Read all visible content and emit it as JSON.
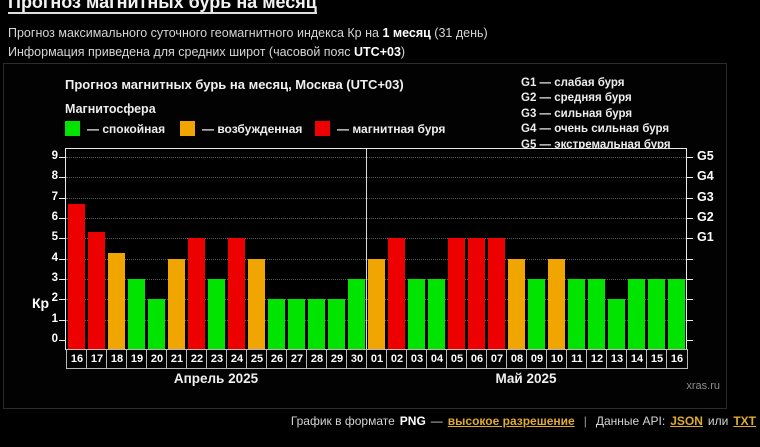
{
  "header": {
    "title": "Прогноз магнитных бурь на месяц",
    "line1_pre": "Прогноз максимального суточного геомагнитного индекса Кр на ",
    "line1_bold": "1 месяц",
    "line1_post": " (31 день)",
    "line2_pre": "Информация приведена для средних широт (часовой пояс ",
    "line2_bold": "UTC+03",
    "line2_post": ")"
  },
  "chart": {
    "title": "Прогноз магнитных бурь на месяц, Москва (UTC+03)",
    "legend_title": "Магнитосфера",
    "legend": [
      {
        "label": "— спокойная",
        "color": "#00e400"
      },
      {
        "label": "— возбужденная",
        "color": "#f0a500"
      },
      {
        "label": "— магнитная буря",
        "color": "#ec0000"
      }
    ],
    "g_legend": [
      "G1 — слабая буря",
      "G2 — средняя буря",
      "G3 — сильная буря",
      "G4 — очень сильная буря",
      "G5 — экстремальная буря"
    ],
    "ylabel": "Кр",
    "watermark": "xras.ru"
  },
  "chart_data": {
    "type": "bar",
    "title": "Прогноз магнитных бурь на месяц, Москва (UTC+03)",
    "ylabel": "Кр",
    "ylim": [
      0,
      9
    ],
    "y_ticks": [
      0,
      1,
      2,
      3,
      4,
      5,
      6,
      7,
      8,
      9
    ],
    "right_axis": [
      {
        "label": "G1",
        "kp": 5
      },
      {
        "label": "G2",
        "kp": 6
      },
      {
        "label": "G3",
        "kp": 7
      },
      {
        "label": "G4",
        "kp": 8
      },
      {
        "label": "G5",
        "kp": 9
      }
    ],
    "categories": [
      "16",
      "17",
      "18",
      "19",
      "20",
      "21",
      "22",
      "23",
      "24",
      "25",
      "26",
      "27",
      "28",
      "29",
      "30",
      "01",
      "02",
      "03",
      "04",
      "05",
      "06",
      "07",
      "08",
      "09",
      "10",
      "11",
      "12",
      "13",
      "14",
      "15",
      "16"
    ],
    "values": [
      6.7,
      5.3,
      4.3,
      3,
      2,
      4,
      5,
      3,
      5,
      4,
      2,
      2,
      2,
      2,
      3,
      4,
      5,
      3,
      3,
      5,
      5,
      5,
      4,
      3,
      4,
      3,
      3,
      2,
      3,
      3,
      3
    ],
    "months": [
      {
        "label": "Апрель 2025",
        "count": 15
      },
      {
        "label": "Май 2025",
        "count": 16
      }
    ],
    "state_colors": {
      "quiet": "#00e400",
      "excited": "#f0a500",
      "storm": "#ec0000"
    },
    "state_thresholds": {
      "excited_min": 4,
      "storm_min": 5
    },
    "grid": "dotted",
    "legend_position": "top"
  },
  "footer": {
    "text_format": "График в формате",
    "format_bold": "PNG",
    "dash": "—",
    "link_hires": "высокое разрешение",
    "separator": "|",
    "text_api": "Данные API:",
    "link_json": "JSON",
    "text_or": "или",
    "link_txt": "TXT"
  }
}
